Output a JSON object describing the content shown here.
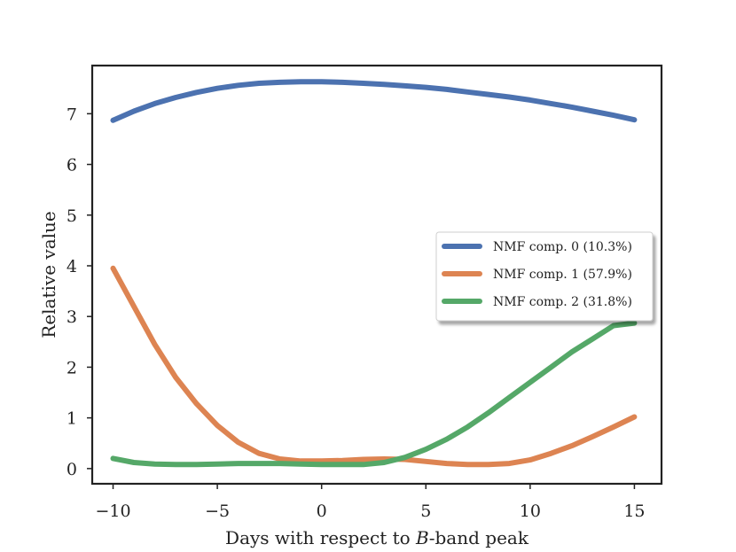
{
  "chart_data": {
    "type": "line",
    "title": "",
    "xlabel_parts": [
      "Days with respect to ",
      "B",
      "-band peak"
    ],
    "ylabel": "Relative value",
    "xlim": [
      -11,
      16.3
    ],
    "ylim": [
      -0.3,
      7.95
    ],
    "xticks": [
      -10,
      -5,
      0,
      5,
      10,
      15
    ],
    "xtick_labels": [
      "−10",
      "−5",
      "0",
      "5",
      "10",
      "15"
    ],
    "yticks": [
      0,
      1,
      2,
      3,
      4,
      5,
      6,
      7
    ],
    "ytick_labels": [
      "0",
      "1",
      "2",
      "3",
      "4",
      "5",
      "6",
      "7"
    ],
    "grid": false,
    "legend_position": "center-right",
    "x": [
      -10,
      -9,
      -8,
      -7,
      -6,
      -5,
      -4,
      -3,
      -2,
      -1,
      0,
      1,
      2,
      3,
      4,
      5,
      6,
      7,
      8,
      9,
      10,
      11,
      12,
      13,
      14,
      15
    ],
    "series": [
      {
        "name": "NMF comp. 0 (10.3%)",
        "color": "#4c72b0",
        "values": [
          6.87,
          7.05,
          7.2,
          7.32,
          7.42,
          7.5,
          7.56,
          7.6,
          7.62,
          7.63,
          7.63,
          7.62,
          7.6,
          7.58,
          7.55,
          7.52,
          7.48,
          7.43,
          7.38,
          7.33,
          7.27,
          7.2,
          7.13,
          7.05,
          6.97,
          6.88
        ]
      },
      {
        "name": "NMF comp. 1 (57.9%)",
        "color": "#dd8452",
        "values": [
          3.95,
          3.2,
          2.45,
          1.8,
          1.28,
          0.85,
          0.52,
          0.3,
          0.19,
          0.15,
          0.15,
          0.16,
          0.18,
          0.19,
          0.18,
          0.14,
          0.1,
          0.08,
          0.08,
          0.1,
          0.17,
          0.3,
          0.45,
          0.63,
          0.82,
          1.02
        ]
      },
      {
        "name": "NMF comp. 2 (31.8%)",
        "color": "#55a868",
        "values": [
          0.2,
          0.12,
          0.09,
          0.08,
          0.08,
          0.09,
          0.1,
          0.1,
          0.1,
          0.09,
          0.08,
          0.08,
          0.08,
          0.12,
          0.22,
          0.38,
          0.58,
          0.82,
          1.1,
          1.4,
          1.7,
          2.0,
          2.3,
          2.56,
          2.82,
          2.87
        ]
      }
    ]
  }
}
